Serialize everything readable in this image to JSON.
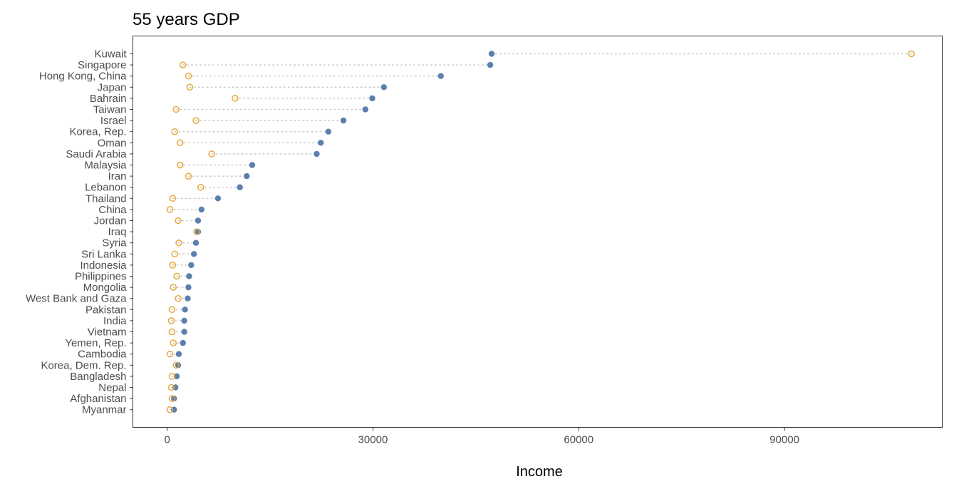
{
  "chart_data": {
    "type": "dumbbell",
    "title": "55 years GDP",
    "xlabel": "Income",
    "ylabel": "",
    "xlim": [
      -5000,
      113000
    ],
    "xticks": [
      0,
      30000,
      60000,
      90000
    ],
    "grid": false,
    "legend": "none",
    "colors": {
      "start": "#E7A83A",
      "end": "#5B80AE",
      "connector": "#C8C8C8",
      "frame": "#333333"
    },
    "categories": [
      "Kuwait",
      "Singapore",
      "Hong Kong, China",
      "Japan",
      "Bahrain",
      "Taiwan",
      "Israel",
      "Korea, Rep.",
      "Oman",
      "Saudi Arabia",
      "Malaysia",
      "Iran",
      "Lebanon",
      "Thailand",
      "China",
      "Jordan",
      "Iraq",
      "Syria",
      "Sri Lanka",
      "Indonesia",
      "Philippines",
      "Mongolia",
      "West Bank and Gaza",
      "Pakistan",
      "India",
      "Vietnam",
      "Yemen, Rep.",
      "Cambodia",
      "Korea, Dem. Rep.",
      "Bangladesh",
      "Nepal",
      "Afghanistan",
      "Myanmar"
    ],
    "series": [
      {
        "values": [
          108500,
          2300,
          3100,
          3300,
          9900,
          1300,
          4200,
          1100,
          1900,
          6500,
          1900,
          3100,
          4900,
          800,
          400,
          1600,
          4300,
          1700,
          1100,
          800,
          1400,
          900,
          1600,
          700,
          600,
          700,
          900,
          400,
          1300,
          700,
          600,
          700,
          400
        ]
      },
      {
        "values": [
          47300,
          47100,
          39900,
          31600,
          29900,
          28900,
          25700,
          23500,
          22400,
          21800,
          12400,
          11600,
          10600,
          7400,
          5000,
          4500,
          4500,
          4200,
          3900,
          3500,
          3200,
          3100,
          3000,
          2600,
          2500,
          2500,
          2300,
          1700,
          1600,
          1400,
          1200,
          1000,
          1000
        ]
      }
    ]
  }
}
